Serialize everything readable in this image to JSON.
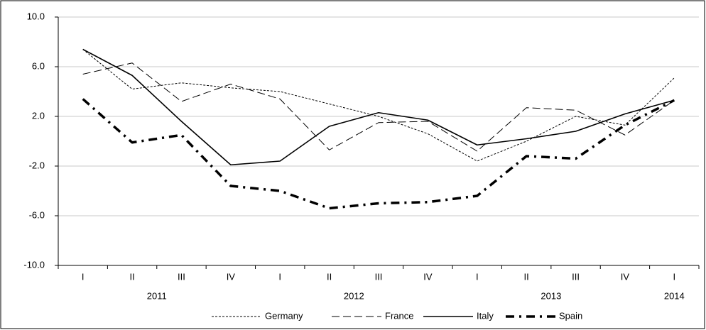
{
  "chart_data": {
    "type": "line",
    "categories": [
      "I",
      "II",
      "III",
      "IV",
      "I",
      "II",
      "III",
      "IV",
      "I",
      "II",
      "III",
      "IV",
      "I"
    ],
    "years": [
      "2011",
      "2011",
      "2011",
      "2011",
      "2012",
      "2012",
      "2012",
      "2012",
      "2013",
      "2013",
      "2013",
      "2013",
      "2014"
    ],
    "series": [
      {
        "name": "Germany",
        "color": "#000000",
        "style": "dotted",
        "values": [
          7.4,
          4.2,
          4.7,
          4.3,
          4.0,
          3.0,
          2.0,
          0.6,
          -1.6,
          0.0,
          2.0,
          1.3,
          5.1
        ]
      },
      {
        "name": "France",
        "color": "#000000",
        "style": "dashed",
        "values": [
          5.4,
          6.3,
          3.2,
          4.6,
          3.4,
          -0.7,
          1.5,
          1.6,
          -0.8,
          2.7,
          2.5,
          0.5,
          3.3
        ]
      },
      {
        "name": "Italy",
        "color": "#000000",
        "style": "solid",
        "values": [
          7.4,
          5.3,
          1.6,
          -1.9,
          -1.6,
          1.2,
          2.3,
          1.7,
          -0.3,
          0.2,
          0.8,
          2.2,
          3.3
        ]
      },
      {
        "name": "Spain",
        "color": "#000000",
        "style": "dash-dot",
        "values": [
          3.4,
          -0.1,
          0.5,
          -3.6,
          -4.0,
          -5.4,
          -5.0,
          -4.9,
          -4.4,
          -1.2,
          -1.4,
          1.3,
          3.3
        ]
      }
    ],
    "ylim": [
      -10,
      10
    ],
    "yticks": [
      {
        "value": -10,
        "label": "-10.0"
      },
      {
        "value": -6,
        "label": "-6.0"
      },
      {
        "value": -2,
        "label": "-2.0"
      },
      {
        "value": 2,
        "label": "2.0"
      },
      {
        "value": 6,
        "label": "6.0"
      },
      {
        "value": 10,
        "label": "10.0"
      }
    ],
    "grid": true,
    "legend": "bottom"
  }
}
